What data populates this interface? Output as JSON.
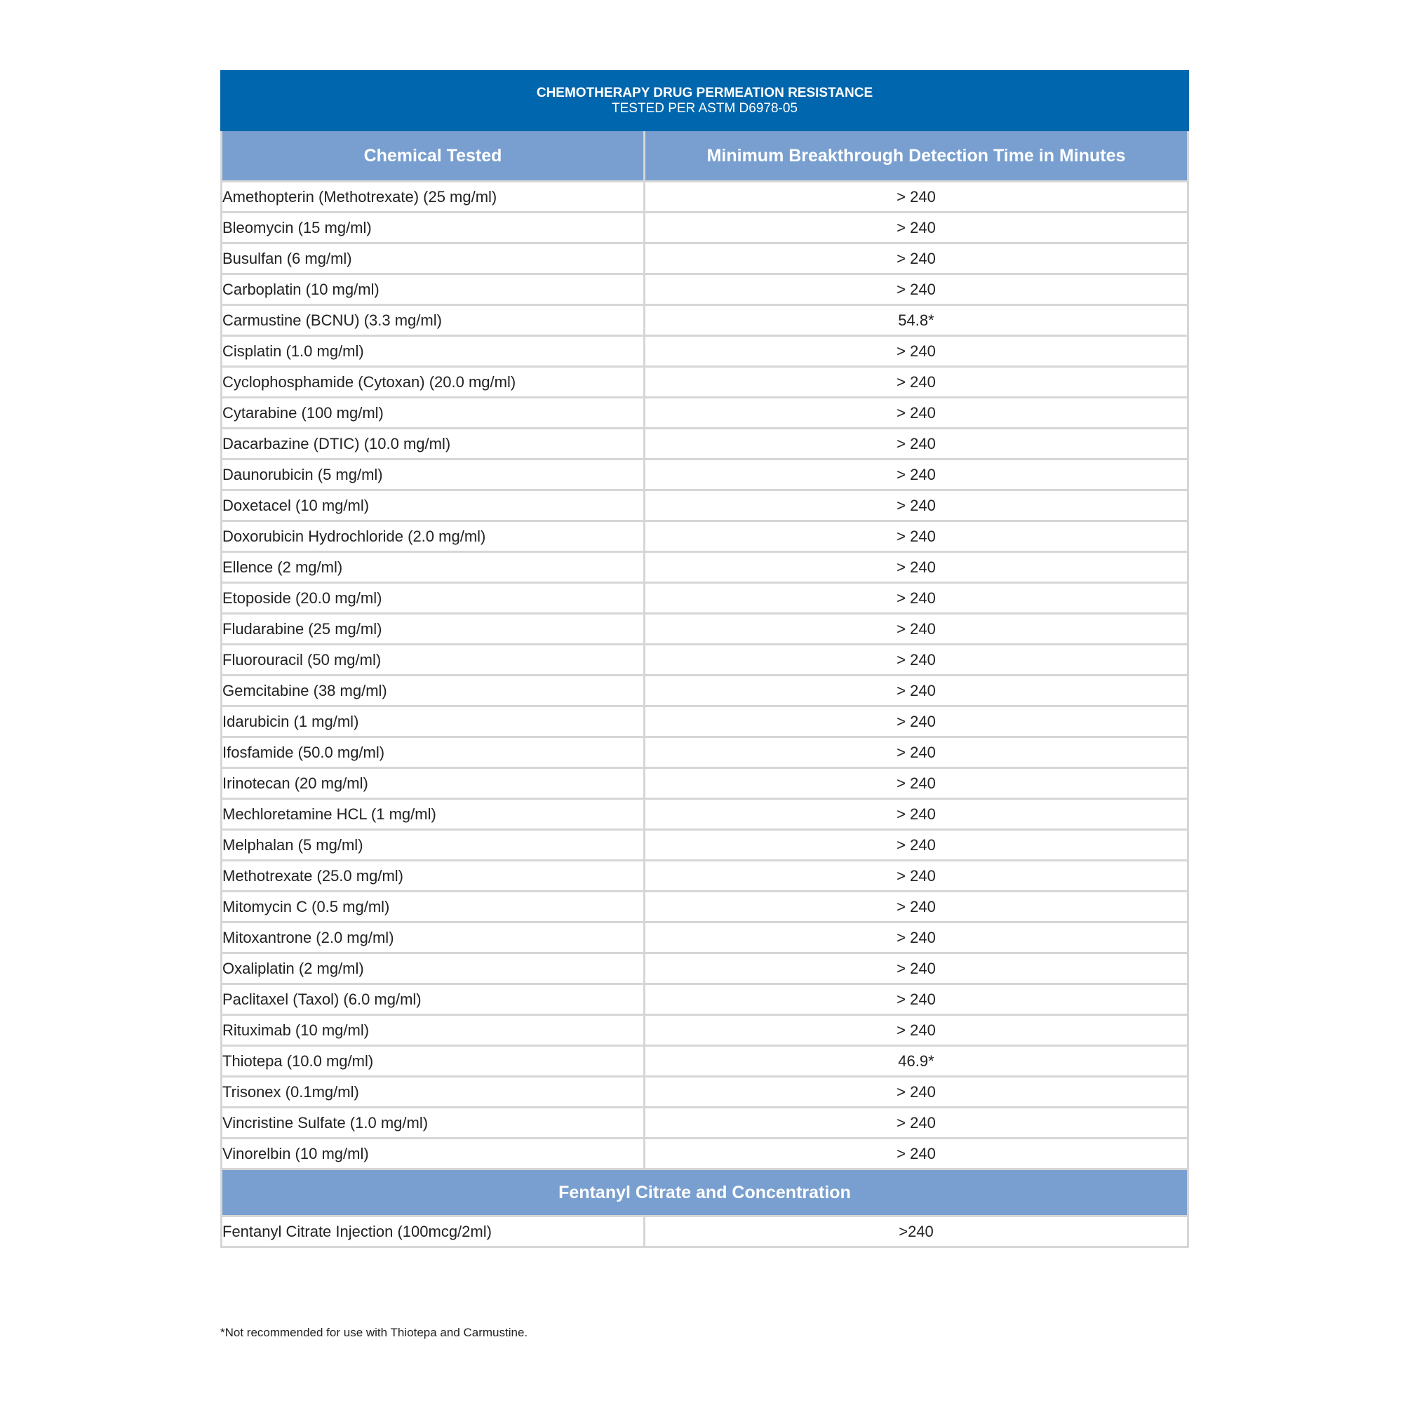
{
  "title": "CHEMOTHERAPY DRUG PERMEATION RESISTANCE",
  "subtitle": "TESTED PER ASTM D6978-05",
  "columns": [
    "Chemical Tested",
    "Minimum Breakthrough Detection Time in Minutes"
  ],
  "rows": [
    [
      "Amethopterin (Methotrexate) (25 mg/ml)",
      "> 240"
    ],
    [
      "Bleomycin (15 mg/ml)",
      "> 240"
    ],
    [
      "Busulfan (6 mg/ml)",
      "> 240"
    ],
    [
      "Carboplatin (10 mg/ml)",
      "> 240"
    ],
    [
      "Carmustine (BCNU) (3.3 mg/ml)",
      "54.8*"
    ],
    [
      "Cisplatin (1.0 mg/ml)",
      "> 240"
    ],
    [
      "Cyclophosphamide (Cytoxan) (20.0 mg/ml)",
      "> 240"
    ],
    [
      "Cytarabine (100 mg/ml)",
      "> 240"
    ],
    [
      "Dacarbazine (DTIC) (10.0 mg/ml)",
      "> 240"
    ],
    [
      "Daunorubicin (5 mg/ml)",
      "> 240"
    ],
    [
      "Doxetacel (10 mg/ml)",
      "> 240"
    ],
    [
      "Doxorubicin Hydrochloride (2.0 mg/ml)",
      "> 240"
    ],
    [
      "Ellence (2 mg/ml)",
      "> 240"
    ],
    [
      "Etoposide (20.0 mg/ml)",
      "> 240"
    ],
    [
      "Fludarabine (25 mg/ml)",
      "> 240"
    ],
    [
      "Fluorouracil (50 mg/ml)",
      "> 240"
    ],
    [
      "Gemcitabine (38 mg/ml)",
      "> 240"
    ],
    [
      "Idarubicin (1 mg/ml)",
      "> 240"
    ],
    [
      "Ifosfamide (50.0 mg/ml)",
      "> 240"
    ],
    [
      "Irinotecan (20 mg/ml)",
      "> 240"
    ],
    [
      "Mechloretamine HCL (1 mg/ml)",
      "> 240"
    ],
    [
      "Melphalan (5 mg/ml)",
      "> 240"
    ],
    [
      "Methotrexate (25.0 mg/ml)",
      "> 240"
    ],
    [
      "Mitomycin C (0.5 mg/ml)",
      "> 240"
    ],
    [
      "Mitoxantrone (2.0 mg/ml)",
      "> 240"
    ],
    [
      "Oxaliplatin (2 mg/ml)",
      "> 240"
    ],
    [
      "Paclitaxel (Taxol) (6.0 mg/ml)",
      "> 240"
    ],
    [
      "Rituximab (10 mg/ml)",
      "> 240"
    ],
    [
      "Thiotepa (10.0 mg/ml)",
      "46.9*"
    ],
    [
      "Trisonex (0.1mg/ml)",
      "> 240"
    ],
    [
      "Vincristine Sulfate (1.0 mg/ml)",
      "> 240"
    ],
    [
      "Vinorelbin (10 mg/ml)",
      "> 240"
    ]
  ],
  "section2": {
    "title": "Fentanyl Citrate and Concentration",
    "rows": [
      [
        "Fentanyl Citrate Injection (100mcg/2ml)",
        ">240"
      ]
    ]
  },
  "footnote": "*Not recommended for use with Thiotepa and Carmustine.",
  "colors": {
    "title_bg": "#0066ad",
    "header_bg": "#789fcf",
    "border": "#d6d6d6"
  }
}
